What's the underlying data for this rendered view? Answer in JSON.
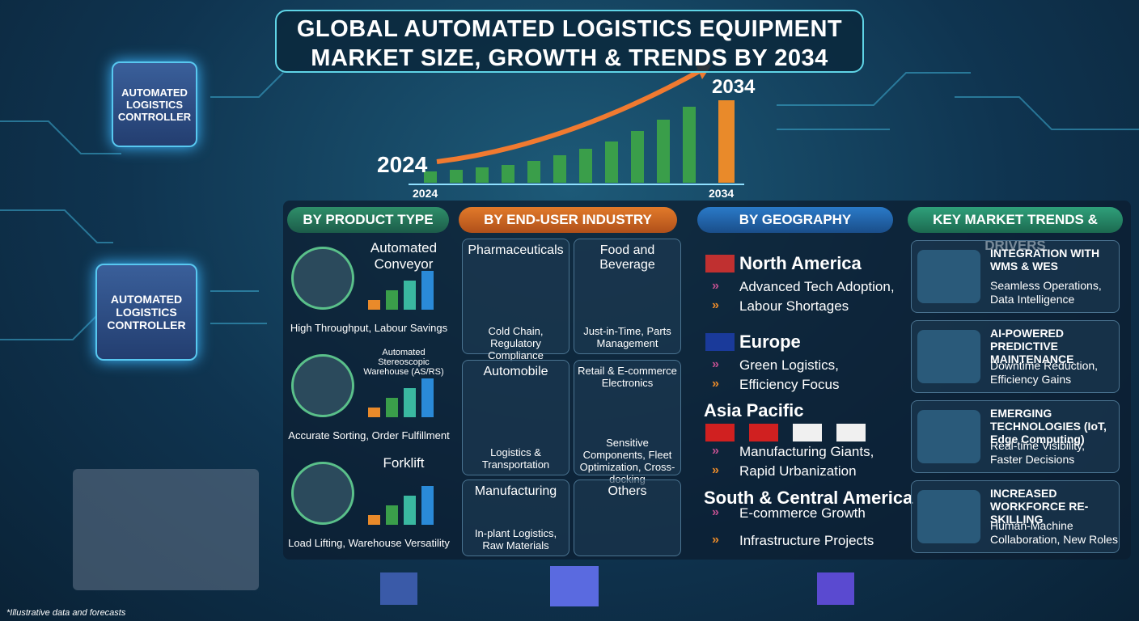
{
  "header": {
    "title_lines": [
      "GLOBAL AUTOMATED LOGISTICS EQUIPMENT",
      "MARKET SIZE, GROWTH & TRENDS BY 2034"
    ]
  },
  "growth_graphic": {
    "start_label": "2024",
    "end_label": "2034",
    "axis_start": "2024",
    "axis_end": "2034"
  },
  "chips": [
    "AUTOMATED LOGISTICS CONTROLLER",
    "AUTOMATED LOGISTICS CONTROLLER"
  ],
  "product_type": {
    "title": "BY PRODUCT TYPE",
    "items": [
      {
        "name": "Automated Conveyor",
        "desc": "High Throughput, Labour Savings"
      },
      {
        "name": "Automated Stereoscopic Warehouse (AS/RS)",
        "desc": "Accurate Sorting, Order Fulfillment"
      },
      {
        "name": "Forklift",
        "desc": "Load Lifting, Warehouse Versatility"
      }
    ]
  },
  "end_user": {
    "title": "BY END-USER INDUSTRY",
    "items": [
      {
        "name": "Pharmaceuticals",
        "desc": "Cold Chain, Regulatory Compliance"
      },
      {
        "name": "Food and Beverage",
        "desc": "Just-in-Time, Parts Management"
      },
      {
        "name": "Automobile",
        "desc": "Logistics & Transportation"
      },
      {
        "name": "Retail & E-commerce Electronics",
        "desc": "Sensitive Components, Fleet Optimization, Cross-docking"
      },
      {
        "name": "Manufacturing",
        "desc": "In-plant Logistics, Raw Materials"
      },
      {
        "name": "Others"
      }
    ]
  },
  "geography": {
    "title": "BY GEOGRAPHY",
    "regions": [
      {
        "name": "North America",
        "points": [
          "Advanced Tech Adoption,",
          "Labour Shortages"
        ]
      },
      {
        "name": "Europe",
        "points": [
          "Green Logistics,",
          "Efficiency Focus"
        ]
      },
      {
        "name": "Asia Pacific",
        "points": [
          "Manufacturing Giants,",
          "Rapid Urbanization"
        ]
      },
      {
        "name": "South & Central America",
        "points": [
          "E-commerce Growth",
          "Infrastructure Projects"
        ]
      }
    ]
  },
  "trends": {
    "title": "KEY MARKET TRENDS & DRIVERS",
    "items": [
      {
        "name": "INTEGRATION WITH WMS & WES",
        "desc": "Seamless Operations, Data Intelligence"
      },
      {
        "name": "AI-POWERED PREDICTIVE MAINTENANCE",
        "desc": "Downtime Reduction, Efficiency Gains"
      },
      {
        "name": "EMERGING TECHNOLOGIES (IoT, Edge Computing)",
        "desc": "Real-time Visibility, Faster Decisions"
      },
      {
        "name": "INCREASED WORKFORCE RE-SKILLING",
        "desc": "Human-Machine Collaboration, New Roles"
      }
    ]
  },
  "footnote": "*Illustrative data and forecasts"
}
